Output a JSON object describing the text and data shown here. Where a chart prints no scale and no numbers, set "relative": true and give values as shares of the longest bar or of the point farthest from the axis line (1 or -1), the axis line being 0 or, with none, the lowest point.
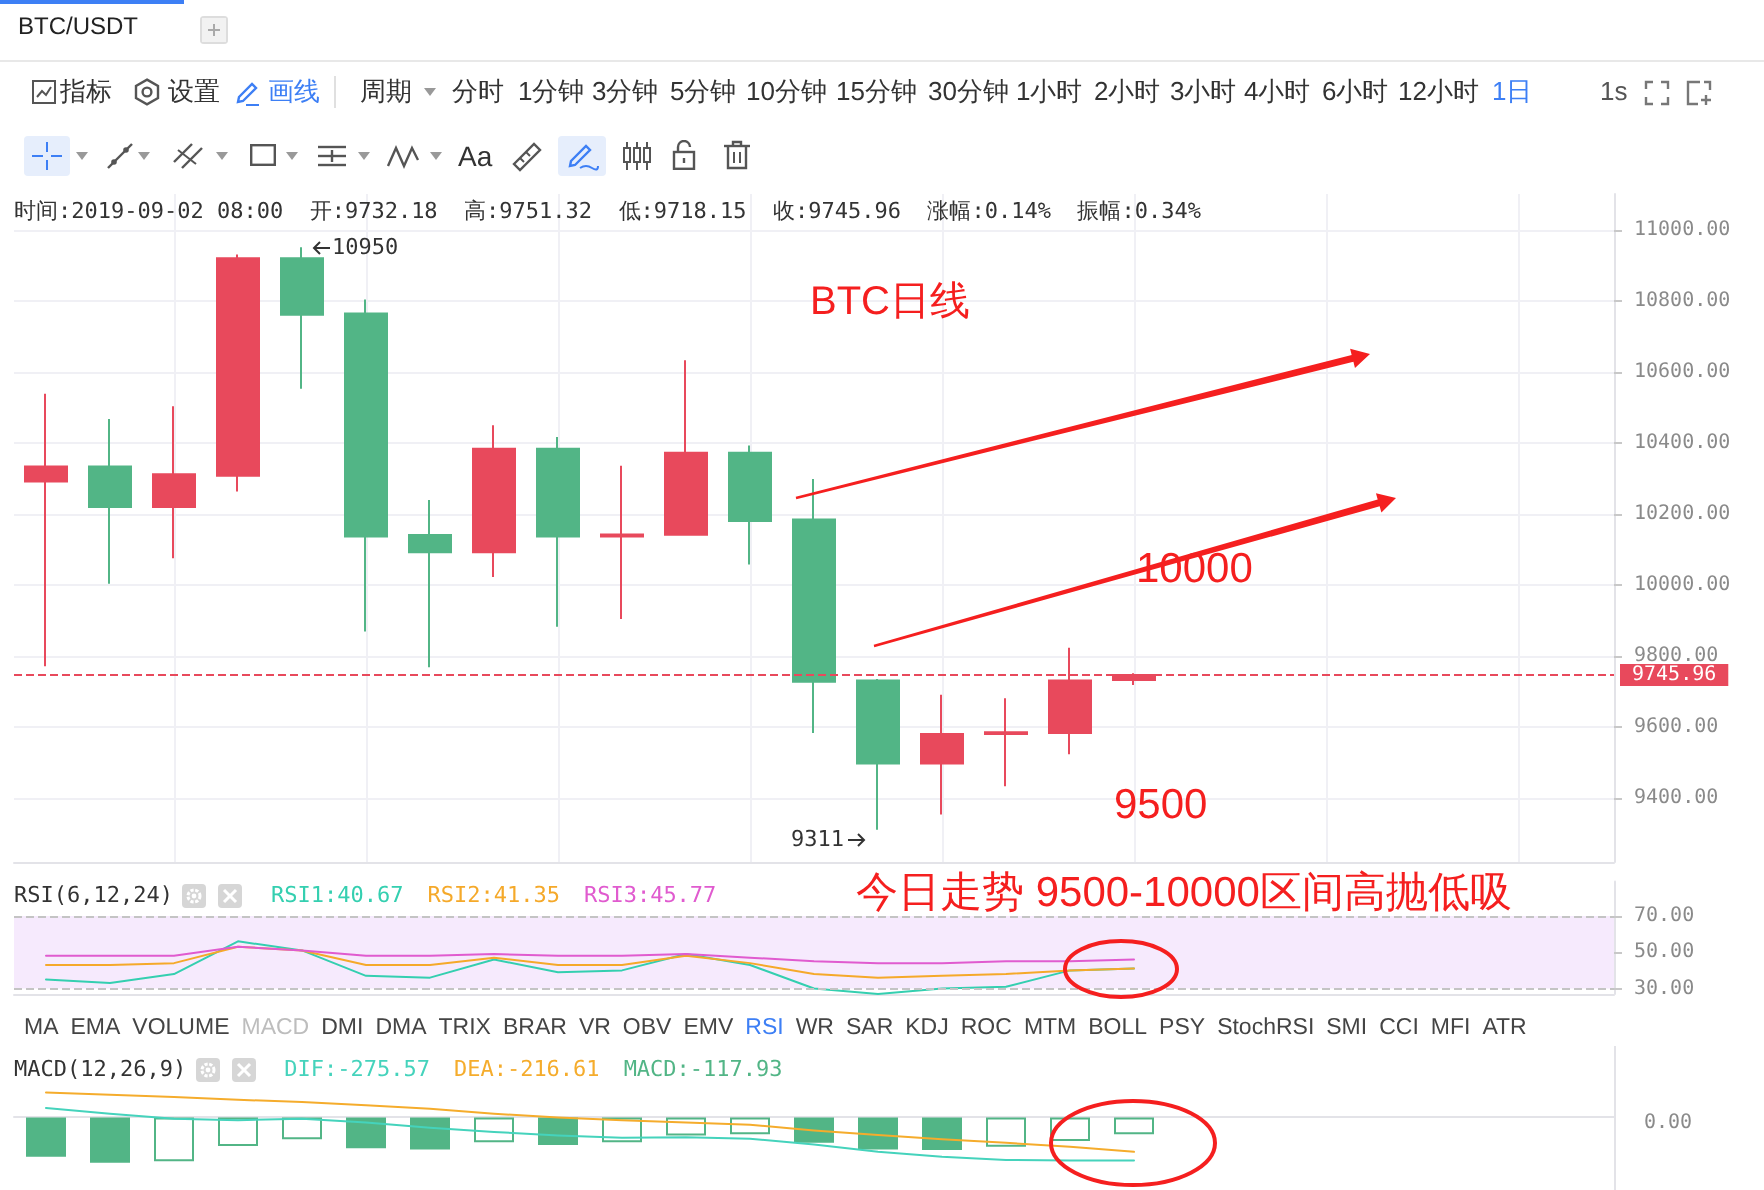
{
  "chart_data": [
    {
      "type": "candlestick",
      "title": "BTC/USDT",
      "subtitle": "时间:2019-09-02 08:00  开:9732.18  高:9751.32  低:9718.15  收:9745.96  涨幅:0.14%  振幅:0.34%",
      "categories": [
        null,
        null,
        null,
        null,
        null,
        null,
        null,
        null,
        null,
        null,
        null,
        null,
        null,
        null,
        null,
        null,
        null,
        null,
        null,
        null,
        null,
        null,
        null,
        null,
        null
      ],
      "ohlc": [
        [
          10291,
          10538,
          9771,
          10333
        ],
        [
          10333,
          10467,
          10003,
          10219
        ],
        [
          10219,
          10503,
          10075,
          10311
        ],
        [
          10307,
          10930,
          10263,
          10919
        ],
        [
          10919,
          10950,
          10552,
          10760
        ],
        [
          10764,
          10803,
          9869,
          10136
        ],
        [
          10140,
          10239,
          9768,
          10092
        ],
        [
          10092,
          10449,
          10022,
          10383
        ],
        [
          10383,
          10416,
          9882,
          10136
        ],
        [
          10136,
          10335,
          9904,
          10142
        ],
        [
          10141,
          10632,
          10141,
          10372
        ],
        [
          10372,
          10392,
          10057,
          10180
        ],
        [
          10184,
          10298,
          9583,
          9727
        ],
        [
          9731,
          9735,
          9311,
          9497
        ],
        [
          9497,
          9691,
          9354,
          9580
        ],
        [
          9580,
          9681,
          9433,
          9585
        ],
        [
          9583,
          9823,
          9523,
          9731
        ],
        [
          9732.18,
          9751.32,
          9718.15,
          9745.96
        ],
        null,
        null,
        null,
        null,
        null,
        null,
        null
      ],
      "colors": [
        "#e8495c",
        "#52b586",
        "#e8495c",
        "#e8495c",
        "#52b586",
        "#52b586",
        "#52b586",
        "#e8495c",
        "#52b586",
        "#e8495c",
        "#e8495c",
        "#52b586",
        "#52b586",
        "#52b586",
        "#e8495c",
        "#e8495c",
        "#e8495c",
        "#e8495c",
        null,
        null,
        null,
        null,
        null,
        null,
        null
      ],
      "ylim": [
        9220,
        11100
      ],
      "yticks": [
        {
          "value": 9400,
          "label": "9400.00"
        },
        {
          "value": 9600,
          "label": "9600.00"
        },
        {
          "value": 9800,
          "label": "9800.00"
        },
        {
          "value": 10000,
          "label": "10000.00"
        },
        {
          "value": 10200,
          "label": "10200.00"
        },
        {
          "value": 10400,
          "label": "10400.00"
        },
        {
          "value": 10600,
          "label": "10600.00"
        },
        {
          "value": 10800,
          "label": "10800.00"
        },
        {
          "value": 11000,
          "label": "11000.00"
        }
      ],
      "grid": true,
      "ref_lines": [
        {
          "axis": "y",
          "value": 9745.96,
          "label": "9745.96",
          "color": "#e8495c",
          "line_style": "dashed"
        }
      ],
      "annotations": [
        "指标",
        "设置",
        "画线",
        "周期",
        "分时",
        "1分钟",
        "3分钟",
        "5分钟",
        "10分钟",
        "15分钟",
        "30分钟",
        "1小时",
        "2小时",
        "3小时",
        "4小时",
        "6小时",
        "12小时",
        "1日",
        "1s",
        "Aa",
        "BTC日线",
        "10000",
        "9500",
        "10950",
        "9311"
      ]
    },
    {
      "type": "line",
      "title": "RSI(6,12,24)",
      "categories": [
        null,
        null,
        null,
        null,
        null,
        null,
        null,
        null,
        null,
        null,
        null,
        null,
        null,
        null,
        null,
        null,
        null,
        null,
        null,
        null,
        null,
        null,
        null,
        null,
        null
      ],
      "series": [
        {
          "name": "RSI1:40.67",
          "color": "#34cfb0",
          "values": [
            35,
            33,
            38,
            56,
            51,
            37,
            36,
            46,
            39,
            40,
            49,
            43,
            30,
            27,
            30,
            31,
            40,
            41,
            null,
            null,
            null,
            null,
            null,
            null,
            null
          ]
        },
        {
          "name": "RSI2:41.35",
          "color": "#f5a92a",
          "values": [
            43,
            43,
            44,
            53,
            51,
            43,
            43,
            47,
            43,
            43,
            48,
            44,
            38,
            36,
            37,
            38,
            40,
            41,
            null,
            null,
            null,
            null,
            null,
            null,
            null
          ]
        },
        {
          "name": "RSI3:45.77",
          "color": "#e05bcf",
          "values": [
            48,
            48,
            48,
            53,
            51,
            48,
            48,
            49,
            48,
            48,
            49,
            47,
            45,
            44,
            44,
            45,
            45,
            46,
            null,
            null,
            null,
            null,
            null,
            null,
            null
          ]
        }
      ],
      "ylim": [
        27,
        89
      ],
      "yticks": [
        {
          "value": 30,
          "label": "30.00"
        },
        {
          "value": 50,
          "label": "50.00"
        },
        {
          "value": 70,
          "label": "70.00"
        }
      ],
      "bands": [
        {
          "axis": "y",
          "from": 30,
          "to": 70,
          "color": "#f6eafd"
        }
      ],
      "ref_lines": [
        {
          "axis": "y",
          "value": 70,
          "color": "#c4c4c4",
          "line_style": "dashed"
        },
        {
          "axis": "y",
          "value": 30,
          "color": "#c4c4c4",
          "line_style": "dashed"
        }
      ],
      "legend": "top left",
      "marker": "none",
      "annotations": [
        "今日走势 9500-10000区间高抛低吸"
      ]
    },
    {
      "type": "other",
      "annotations": [
        "MA",
        "EMA",
        "VOLUME",
        "MACD",
        "DMI",
        "DMA",
        "TRIX",
        "BRAR",
        "VR",
        "OBV",
        "EMV",
        "RSI",
        "WR",
        "SAR",
        "KDJ",
        "ROC",
        "MTM",
        "BOLL",
        "PSY",
        "StochRSI",
        "SMI",
        "CCI",
        "MFI",
        "ATR"
      ],
      "colors": [
        "#444444",
        "#444444",
        "#444444",
        "#bdbdbd",
        "#444444",
        "#444444",
        "#444444",
        "#444444",
        "#444444",
        "#444444",
        "#444444",
        "#3d7ff5",
        "#444444",
        "#444444",
        "#444444",
        "#444444",
        "#444444",
        "#444444",
        "#444444",
        "#444444",
        "#444444",
        "#444444",
        "#444444",
        "#444444"
      ]
    },
    {
      "type": "bar",
      "title": "MACD(12,26,9)",
      "relative": true,
      "categories": [
        null,
        null,
        null,
        null,
        null,
        null,
        null,
        null,
        null,
        null,
        null,
        null,
        null,
        null,
        null,
        null,
        null,
        null,
        null,
        null,
        null,
        null,
        null,
        null,
        null
      ],
      "series": [
        {
          "name": "DIF:-275.57",
          "type": "line",
          "color": "#45d3bc",
          "values": [
            0.21,
            0.08,
            -0.03,
            -0.06,
            -0.03,
            -0.11,
            -0.23,
            -0.32,
            -0.4,
            -0.45,
            -0.44,
            -0.47,
            -0.6,
            -0.76,
            -0.87,
            -0.94,
            -0.95,
            -0.95,
            null,
            null,
            null,
            null,
            null,
            null,
            null
          ]
        },
        {
          "name": "DEA:-216.61",
          "type": "line",
          "color": "#f5ac2c",
          "values": [
            0.55,
            0.5,
            0.45,
            0.39,
            0.34,
            0.27,
            0.19,
            0.08,
            0,
            -0.06,
            -0.11,
            -0.16,
            -0.29,
            -0.39,
            -0.48,
            -0.56,
            -0.65,
            -0.76,
            null,
            null,
            null,
            null,
            null,
            null,
            null
          ]
        },
        {
          "name": "MACD:-117.93",
          "type": "bar",
          "color": "#52b586",
          "colors": [
            "#52b586",
            "#52b586",
            "#ffffff",
            "#ffffff",
            "#ffffff",
            "#52b586",
            "#52b586",
            "#ffffff",
            "#52b586",
            "#ffffff",
            "#ffffff",
            "#ffffff",
            "#52b586",
            "#52b586",
            "#52b586",
            "#ffffff",
            "#ffffff",
            "#ffffff",
            null,
            null,
            null,
            null,
            null,
            null,
            null
          ],
          "values": [
            -0.87,
            -1,
            -0.97,
            -0.63,
            -0.48,
            -0.68,
            -0.71,
            -0.55,
            -0.61,
            -0.55,
            -0.4,
            -0.37,
            -0.56,
            -0.71,
            -0.72,
            -0.65,
            -0.52,
            -0.37,
            null,
            null,
            null,
            null,
            null,
            null,
            null
          ]
        }
      ],
      "legend": "top left",
      "marker": "none",
      "annotations": [
        "0.00"
      ]
    }
  ]
}
